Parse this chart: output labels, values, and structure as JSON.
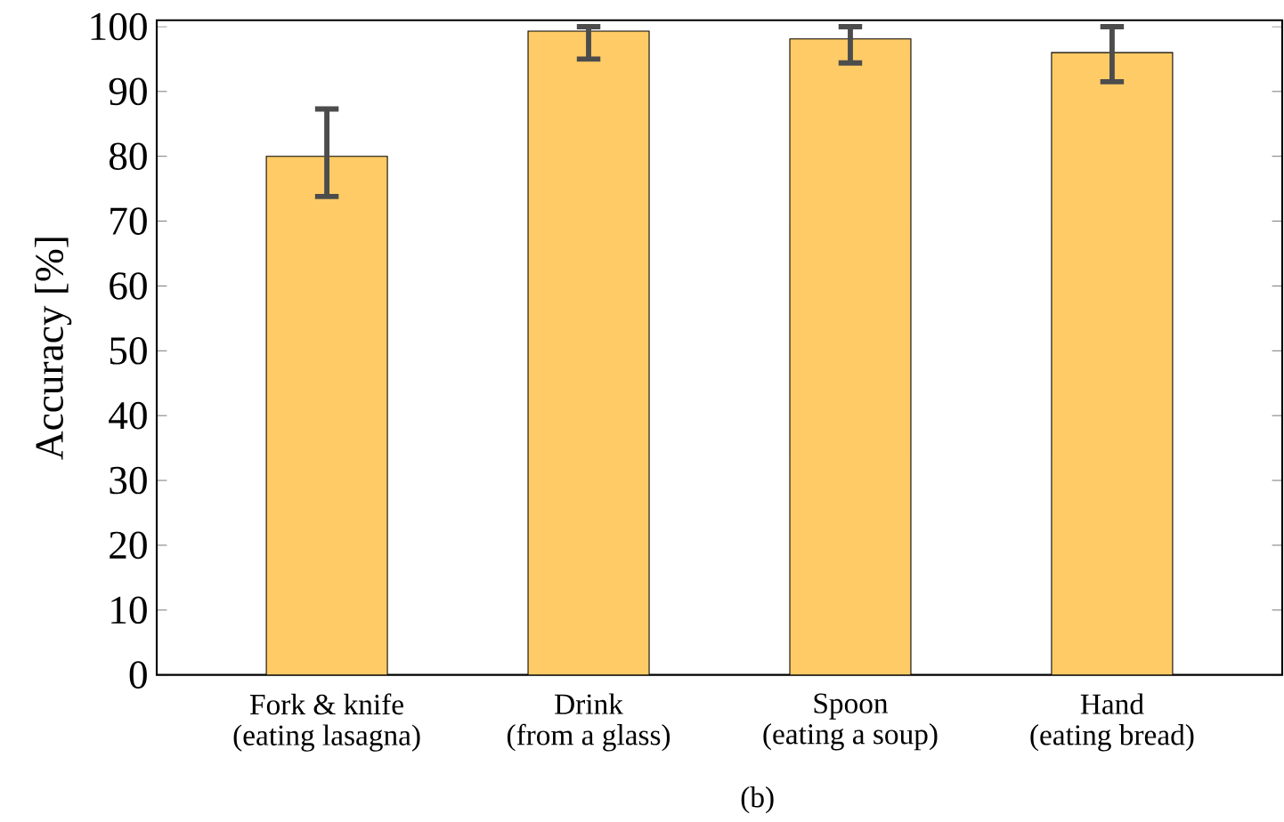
{
  "chart_data": {
    "type": "bar",
    "categories": [
      "Fork & knife\n(eating lasagna)",
      "Drink\n(from a glass)",
      "Spoon\n(eating a soup)",
      "Hand\n(eating bread)"
    ],
    "values": [
      80,
      99.3,
      98.1,
      96
    ],
    "errors": [
      [
        73.8,
        87.3
      ],
      [
        95,
        100
      ],
      [
        94.4,
        100
      ],
      [
        91.5,
        100
      ]
    ],
    "color": "#fecb66",
    "ylabel": "Accuracy [%]",
    "ylim": [
      0,
      101
    ],
    "yticks": [
      0,
      10,
      20,
      30,
      40,
      50,
      60,
      70,
      80,
      90,
      100
    ],
    "annotations": [
      "(b)"
    ],
    "grid": false
  }
}
